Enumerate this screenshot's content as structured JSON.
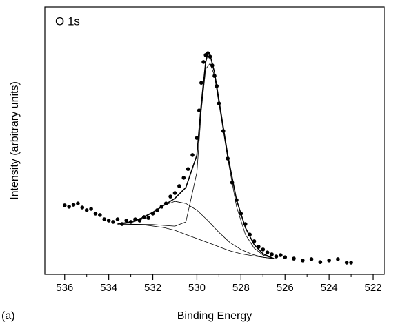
{
  "chart_data": {
    "type": "scatter",
    "annotation": "O 1s",
    "panel_label": "(a)",
    "xlabel": "Binding Energy",
    "ylabel": "Intensity (arbitrary units)",
    "xlim": [
      536.9,
      521.5
    ],
    "ylim": [
      0,
      100
    ],
    "xticks": [
      536,
      534,
      532,
      530,
      528,
      526,
      524,
      522
    ],
    "xticks_minor": [
      535,
      533,
      531,
      529,
      527,
      525,
      523
    ],
    "series": [
      {
        "style": "markers",
        "color": "#000000",
        "x": [
          536.0,
          535.8,
          535.6,
          535.4,
          535.2,
          535.0,
          534.8,
          534.6,
          534.4,
          534.2,
          534.0,
          533.8,
          533.6,
          533.4,
          533.2,
          533.0,
          532.8,
          532.6,
          532.4,
          532.2,
          532.0,
          531.8,
          531.6,
          531.4,
          531.2,
          531.0,
          530.8,
          530.6,
          530.4,
          530.2,
          530.0,
          529.9,
          529.8,
          529.7,
          529.6,
          529.5,
          529.4,
          529.3,
          529.2,
          529.1,
          529.0,
          528.8,
          528.6,
          528.4,
          528.2,
          528.0,
          527.8,
          527.6,
          527.4,
          527.2,
          527.0,
          526.8,
          526.6,
          526.4,
          526.2,
          526.0,
          525.6,
          525.2,
          524.8,
          524.4,
          524.0,
          523.6,
          523.2,
          523.0
        ],
        "values": [
          25.8,
          25.3,
          26.0,
          26.5,
          25.0,
          24.0,
          24.5,
          22.7,
          22.2,
          20.6,
          20.1,
          19.6,
          20.6,
          18.8,
          20.1,
          19.6,
          20.6,
          20.1,
          21.4,
          21.1,
          22.7,
          24.0,
          25.3,
          26.5,
          29.1,
          30.4,
          33.0,
          36.1,
          39.4,
          44.6,
          51.0,
          61.3,
          71.6,
          79.4,
          82.0,
          82.7,
          81.4,
          78.1,
          74.2,
          70.4,
          63.9,
          53.6,
          43.3,
          34.3,
          27.8,
          22.7,
          18.8,
          14.9,
          12.4,
          10.3,
          9.3,
          8.2,
          7.5,
          6.7,
          7.2,
          6.4,
          5.9,
          5.2,
          5.7,
          4.6,
          5.2,
          5.7,
          4.4,
          4.4
        ]
      },
      {
        "style": "line",
        "color": "#000000",
        "width": 1.6,
        "x": [
          533.6,
          533.0,
          532.5,
          532.0,
          531.5,
          531.0,
          530.5,
          530.0,
          529.8,
          529.6,
          529.5,
          529.4,
          529.2,
          529.0,
          528.6,
          528.2,
          527.8,
          527.4,
          527.0,
          526.5
        ],
        "values": [
          18.8,
          19.6,
          21.1,
          23.2,
          25.8,
          28.4,
          32.5,
          44.6,
          63.9,
          79.4,
          82.7,
          82.0,
          75.5,
          65.2,
          44.6,
          27.8,
          17.5,
          11.1,
          7.7,
          5.9
        ]
      },
      {
        "style": "line",
        "color": "#000000",
        "width": 0.8,
        "x": [
          533.6,
          532.0,
          531.0,
          530.5,
          530.0,
          529.8,
          529.6,
          529.4,
          529.2,
          529.0,
          528.6,
          528.2,
          527.8,
          527.4,
          527.0,
          526.5
        ],
        "values": [
          18.8,
          18.6,
          18.0,
          19.6,
          38.1,
          61.3,
          76.8,
          78.9,
          74.2,
          63.9,
          43.3,
          25.3,
          14.9,
          9.8,
          7.2,
          5.9
        ]
      },
      {
        "style": "line",
        "color": "#000000",
        "width": 0.8,
        "x": [
          533.6,
          533.0,
          532.5,
          532.0,
          531.5,
          531.0,
          530.5,
          530.0,
          529.5,
          529.0,
          528.5,
          528.0,
          527.5,
          527.0,
          526.5
        ],
        "values": [
          18.8,
          19.3,
          20.6,
          23.2,
          25.8,
          27.3,
          26.5,
          24.0,
          20.1,
          15.7,
          11.9,
          9.3,
          7.5,
          6.4,
          5.9
        ]
      },
      {
        "style": "line",
        "color": "#000000",
        "width": 0.8,
        "x": [
          533.6,
          532.5,
          531.5,
          531.0,
          530.5,
          530.0,
          529.5,
          529.0,
          528.5,
          528.0,
          527.5,
          527.0,
          526.5
        ],
        "values": [
          18.8,
          18.6,
          17.5,
          16.5,
          14.9,
          13.4,
          11.9,
          10.3,
          8.8,
          7.7,
          7.0,
          6.4,
          5.9
        ]
      }
    ]
  }
}
